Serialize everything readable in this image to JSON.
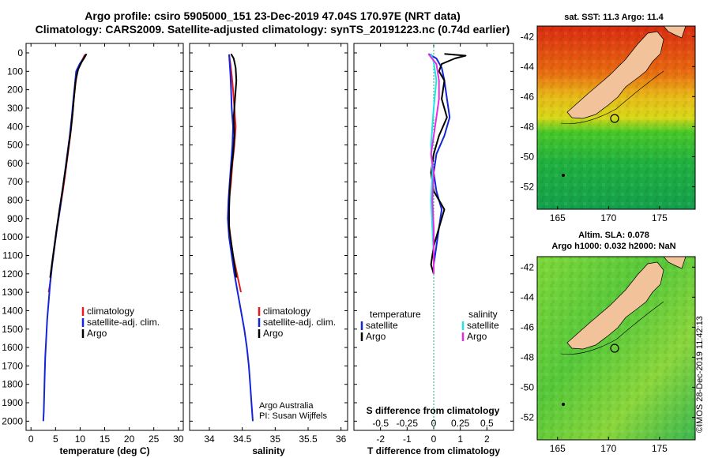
{
  "header": {
    "title_line1": "Argo profile: csiro 5905000_151 23-Dec-2019 47.04S 170.97E (NRT data)",
    "title_line2": "Climatology: CARS2009. Satellite-adjusted climatology: synTS_20191223.nc (0.74d earlier)"
  },
  "colors": {
    "climatology": "#e8191f",
    "satellite": "#1424d8",
    "argo": "#000000",
    "s_satellite": "#22e4e4",
    "s_argo": "#e22ee0",
    "land": "#f2c29a"
  },
  "chart_data": [
    {
      "id": "temperature",
      "type": "line",
      "xlabel": "temperature (deg C)",
      "ylabel": "",
      "xlim": [
        -1,
        31
      ],
      "ylim": [
        2050,
        0
      ],
      "x_ticks": [
        0,
        5,
        10,
        15,
        20,
        25,
        30
      ],
      "y_ticks": [
        0,
        100,
        200,
        300,
        400,
        500,
        600,
        700,
        800,
        900,
        1000,
        1100,
        1200,
        1300,
        1400,
        1500,
        1600,
        1700,
        1800,
        1900,
        2000
      ],
      "legend": [
        "climatology",
        "satellite-adj. clim.",
        "Argo"
      ],
      "series": [
        {
          "name": "climatology",
          "color": "#e8191f",
          "points": [
            [
              11.0,
              8
            ],
            [
              10.6,
              30
            ],
            [
              10.0,
              60
            ],
            [
              9.4,
              100
            ],
            [
              9.0,
              180
            ],
            [
              8.7,
              260
            ],
            [
              8.4,
              350
            ],
            [
              8.0,
              450
            ],
            [
              7.5,
              550
            ],
            [
              7.0,
              650
            ],
            [
              6.5,
              750
            ],
            [
              5.9,
              850
            ],
            [
              5.3,
              950
            ],
            [
              4.8,
              1050
            ],
            [
              4.3,
              1150
            ],
            [
              3.9,
              1250
            ],
            [
              3.6,
              1300
            ]
          ]
        },
        {
          "name": "satellite-adj. clim.",
          "color": "#1424d8",
          "points": [
            [
              11.2,
              8
            ],
            [
              10.7,
              30
            ],
            [
              9.9,
              60
            ],
            [
              9.2,
              100
            ],
            [
              8.9,
              180
            ],
            [
              8.6,
              260
            ],
            [
              8.3,
              350
            ],
            [
              7.9,
              450
            ],
            [
              7.4,
              550
            ],
            [
              6.9,
              650
            ],
            [
              6.4,
              750
            ],
            [
              5.9,
              850
            ],
            [
              5.3,
              950
            ],
            [
              4.8,
              1050
            ],
            [
              4.3,
              1150
            ],
            [
              3.9,
              1250
            ],
            [
              3.6,
              1350
            ],
            [
              3.3,
              1450
            ],
            [
              3.1,
              1550
            ],
            [
              2.9,
              1650
            ],
            [
              2.8,
              1750
            ],
            [
              2.7,
              1850
            ],
            [
              2.6,
              1950
            ],
            [
              2.5,
              2000
            ]
          ]
        },
        {
          "name": "Argo",
          "color": "#000000",
          "points": [
            [
              11.3,
              5
            ],
            [
              11.0,
              20
            ],
            [
              10.3,
              50
            ],
            [
              9.6,
              90
            ],
            [
              9.1,
              150
            ],
            [
              8.8,
              230
            ],
            [
              8.5,
              320
            ],
            [
              8.1,
              420
            ],
            [
              7.6,
              520
            ],
            [
              7.1,
              620
            ],
            [
              6.5,
              730
            ],
            [
              5.8,
              850
            ],
            [
              5.2,
              960
            ],
            [
              4.7,
              1060
            ],
            [
              4.2,
              1160
            ],
            [
              3.9,
              1220
            ]
          ]
        }
      ]
    },
    {
      "id": "salinity",
      "type": "line",
      "xlabel": "salinity",
      "xlim": [
        33.7,
        36.1
      ],
      "ylim": [
        2050,
        0
      ],
      "x_ticks": [
        34,
        34.5,
        35,
        35.5,
        36
      ],
      "x_tick_labels": [
        "34",
        "34.5",
        "35",
        "35.5",
        "36"
      ],
      "legend": [
        "climatology",
        "satellite-adj. clim.",
        "Argo"
      ],
      "series": [
        {
          "name": "climatology",
          "color": "#e8191f",
          "points": [
            [
              34.3,
              8
            ],
            [
              34.32,
              60
            ],
            [
              34.34,
              120
            ],
            [
              34.36,
              200
            ],
            [
              34.38,
              300
            ],
            [
              34.4,
              400
            ],
            [
              34.38,
              500
            ],
            [
              34.35,
              600
            ],
            [
              34.33,
              700
            ],
            [
              34.3,
              800
            ],
            [
              34.29,
              900
            ],
            [
              34.32,
              1000
            ],
            [
              34.36,
              1100
            ],
            [
              34.42,
              1200
            ],
            [
              34.48,
              1300
            ]
          ]
        },
        {
          "name": "satellite-adj. clim.",
          "color": "#1424d8",
          "points": [
            [
              34.3,
              8
            ],
            [
              34.31,
              60
            ],
            [
              34.32,
              120
            ],
            [
              34.33,
              200
            ],
            [
              34.34,
              300
            ],
            [
              34.36,
              400
            ],
            [
              34.35,
              500
            ],
            [
              34.33,
              600
            ],
            [
              34.31,
              700
            ],
            [
              34.29,
              800
            ],
            [
              34.28,
              900
            ],
            [
              34.3,
              1000
            ],
            [
              34.34,
              1100
            ],
            [
              34.38,
              1200
            ],
            [
              34.43,
              1300
            ],
            [
              34.48,
              1400
            ],
            [
              34.53,
              1500
            ],
            [
              34.57,
              1600
            ],
            [
              34.6,
              1700
            ],
            [
              34.62,
              1800
            ],
            [
              34.64,
              1900
            ],
            [
              34.66,
              2000
            ]
          ]
        },
        {
          "name": "Argo",
          "color": "#000000",
          "points": [
            [
              34.33,
              5
            ],
            [
              34.37,
              30
            ],
            [
              34.4,
              80
            ],
            [
              34.41,
              150
            ],
            [
              34.39,
              250
            ],
            [
              34.37,
              350
            ],
            [
              34.38,
              450
            ],
            [
              34.36,
              550
            ],
            [
              34.33,
              650
            ],
            [
              34.31,
              750
            ],
            [
              34.3,
              850
            ],
            [
              34.3,
              950
            ],
            [
              34.34,
              1050
            ],
            [
              34.38,
              1150
            ],
            [
              34.41,
              1220
            ]
          ]
        }
      ],
      "annotation_line1": "Argo Australia",
      "annotation_line2": "PI: Susan Wijffels"
    },
    {
      "id": "difference",
      "type": "line",
      "xlabel": "T difference from climatology",
      "secondary_xlabel": "S difference from climatology",
      "xlim": [
        -3,
        3
      ],
      "ylim": [
        2050,
        0
      ],
      "x_ticks": [
        -2,
        -1,
        0,
        1,
        2
      ],
      "secondary_ticks": [
        -0.5,
        -0.25,
        0,
        0.25,
        0.5
      ],
      "secondary_tick_labels": [
        "-0.5",
        "-0.25",
        "0",
        "0.25",
        "0.5"
      ],
      "legend_headers": [
        "temperature",
        "salinity"
      ],
      "legend": [
        "satellite",
        "Argo",
        "satellite",
        "Argo"
      ],
      "series": [
        {
          "name": "T satellite",
          "color": "#1424d8",
          "points": [
            [
              -0.2,
              5
            ],
            [
              0.1,
              30
            ],
            [
              0.3,
              80
            ],
            [
              0.4,
              150
            ],
            [
              0.5,
              250
            ],
            [
              0.6,
              350
            ],
            [
              0.4,
              450
            ],
            [
              0.1,
              550
            ],
            [
              0.0,
              650
            ],
            [
              0.1,
              750
            ],
            [
              0.3,
              850
            ],
            [
              0.2,
              950
            ],
            [
              0.1,
              1050
            ],
            [
              0.0,
              1150
            ],
            [
              0.0,
              1200
            ]
          ]
        },
        {
          "name": "T Argo",
          "color": "#000000",
          "points": [
            [
              0.4,
              5
            ],
            [
              1.2,
              15
            ],
            [
              0.8,
              30
            ],
            [
              0.3,
              60
            ],
            [
              0.2,
              100
            ],
            [
              0.4,
              150
            ],
            [
              0.3,
              250
            ],
            [
              0.5,
              350
            ],
            [
              0.2,
              450
            ],
            [
              0.0,
              550
            ],
            [
              -0.1,
              650
            ],
            [
              0.0,
              750
            ],
            [
              0.4,
              850
            ],
            [
              0.2,
              950
            ],
            [
              0.0,
              1050
            ],
            [
              -0.1,
              1150
            ],
            [
              0.0,
              1200
            ]
          ]
        },
        {
          "name": "S satellite",
          "color": "#22e4e4",
          "points": [
            [
              -0.1,
              5
            ],
            [
              0.0,
              50
            ],
            [
              0.1,
              150
            ],
            [
              0.0,
              300
            ],
            [
              -0.1,
              500
            ],
            [
              -0.05,
              650
            ],
            [
              -0.1,
              800
            ],
            [
              -0.05,
              950
            ],
            [
              0.0,
              1100
            ],
            [
              0.0,
              1200
            ]
          ]
        },
        {
          "name": "S Argo",
          "color": "#e22ee0",
          "points": [
            [
              -0.2,
              5
            ],
            [
              0.1,
              60
            ],
            [
              0.2,
              150
            ],
            [
              0.2,
              250
            ],
            [
              0.1,
              350
            ],
            [
              0.0,
              450
            ],
            [
              -0.1,
              550
            ],
            [
              0.0,
              650
            ],
            [
              -0.05,
              800
            ],
            [
              0.0,
              950
            ],
            [
              0.0,
              1100
            ],
            [
              0.0,
              1200
            ]
          ]
        }
      ]
    }
  ],
  "maps": {
    "top": {
      "title": "sat. SST: 11.3 Argo: 11.4"
    },
    "bottom": {
      "title_line1": "Altim. SLA: 0.078",
      "title_line2": "Argo h1000: 0.032 h2000: NaN"
    },
    "lon_ticks": [
      165,
      170,
      175
    ],
    "lat_ticks": [
      -42,
      -44,
      -46,
      -48,
      -50,
      -52
    ],
    "float_position": {
      "lon": 170.97,
      "lat": -47.04
    }
  },
  "credit": "©IMOS 28-Dec-2019 11:42:13"
}
